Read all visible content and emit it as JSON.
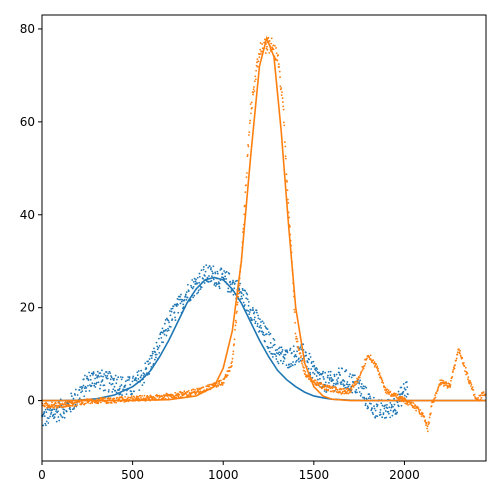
{
  "chart_data": {
    "type": "scatter",
    "title": "",
    "xlabel": "",
    "ylabel": "",
    "xlim": [
      0,
      2450
    ],
    "ylim": [
      -13,
      83
    ],
    "xticks": [
      0,
      500,
      1000,
      1500,
      2000
    ],
    "yticks": [
      0,
      20,
      40,
      60,
      80
    ],
    "xtick_labels": [
      "0",
      "500",
      "1000",
      "1500",
      "2000"
    ],
    "ytick_labels": [
      "0",
      "20",
      "40",
      "60",
      "80"
    ],
    "grid": false,
    "legend": "none",
    "series": [
      {
        "kind": "scatter",
        "color": "#1f77b4",
        "x": [
          0,
          50,
          100,
          150,
          200,
          250,
          300,
          350,
          400,
          450,
          500,
          550,
          600,
          650,
          700,
          750,
          800,
          850,
          900,
          950,
          1000,
          1050,
          1100,
          1150,
          1200,
          1250,
          1300,
          1350,
          1400,
          1450,
          1500,
          1550,
          1600,
          1650,
          1700,
          1750,
          1800,
          1850,
          1900,
          1950,
          2000,
          2020
        ],
        "y": [
          -4,
          -3,
          -2,
          -1,
          1,
          4,
          5,
          4,
          4,
          3,
          3,
          5,
          8,
          12,
          17,
          20,
          23,
          25,
          27,
          27,
          26,
          25,
          23,
          20,
          16,
          13,
          10,
          9,
          10,
          10,
          6,
          4,
          4,
          5,
          4,
          3,
          0,
          -2,
          -2,
          -1,
          2,
          3
        ]
      },
      {
        "kind": "line",
        "color": "#1f77b4",
        "x": [
          0,
          100,
          200,
          300,
          400,
          500,
          550,
          600,
          650,
          700,
          750,
          800,
          850,
          900,
          950,
          1000,
          1050,
          1100,
          1150,
          1200,
          1250,
          1300,
          1350,
          1400,
          1450,
          1500,
          1550,
          1600,
          1700,
          1800,
          2000,
          2450
        ],
        "y": [
          0,
          0,
          0.1,
          0.4,
          1.2,
          3,
          4.5,
          6.5,
          9.5,
          13,
          17,
          21,
          24,
          26,
          26.5,
          26,
          24,
          21,
          17,
          13,
          9.5,
          6.5,
          4.5,
          3,
          1.8,
          1,
          0.6,
          0.3,
          0.1,
          0,
          0,
          0
        ]
      },
      {
        "kind": "scatter",
        "color": "#ff7f0e",
        "x": [
          0,
          100,
          200,
          300,
          400,
          500,
          600,
          700,
          800,
          900,
          1000,
          1050,
          1100,
          1150,
          1200,
          1250,
          1300,
          1330,
          1350,
          1380,
          1400,
          1450,
          1500,
          1550,
          1600,
          1650,
          1700,
          1750,
          1800,
          1850,
          1900,
          1950,
          2000,
          2050,
          2100,
          2130,
          2150,
          2200,
          2250,
          2280,
          2300,
          2350,
          2400,
          2450
        ],
        "y": [
          -1,
          -1,
          -0.5,
          0,
          0,
          0.5,
          0.5,
          1,
          1.5,
          2.5,
          4,
          8,
          30,
          62,
          75,
          77,
          74,
          64,
          48,
          30,
          14,
          6,
          4,
          3,
          2.5,
          2,
          2,
          5,
          10,
          7,
          2,
          1,
          0,
          -1,
          -3,
          -6,
          -1,
          4,
          3,
          8,
          11,
          5,
          0,
          2
        ]
      },
      {
        "kind": "line",
        "color": "#ff7f0e",
        "x": [
          0,
          400,
          700,
          850,
          950,
          1000,
          1050,
          1100,
          1150,
          1200,
          1240,
          1280,
          1320,
          1360,
          1400,
          1450,
          1500,
          1550,
          1600,
          1700,
          1800,
          2000,
          2450
        ],
        "y": [
          0,
          0,
          0.2,
          1,
          3,
          7,
          15,
          30,
          52,
          72,
          78,
          74,
          58,
          38,
          20,
          8,
          3,
          1,
          0.3,
          0,
          0,
          0,
          0
        ]
      }
    ]
  }
}
